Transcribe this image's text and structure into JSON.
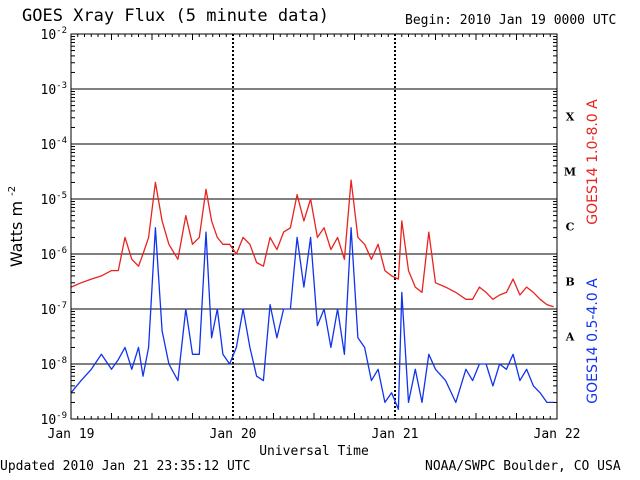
{
  "header": {
    "title": "GOES Xray Flux (5 minute data)",
    "begin": "Begin:  2010 Jan 19 0000 UTC"
  },
  "footer": {
    "updated": "Updated 2010 Jan 21 23:35:12 UTC",
    "credit": "NOAA/SWPC Boulder, CO USA"
  },
  "colors": {
    "long_channel": "#e8231f",
    "short_channel": "#1133ee",
    "grid": "#000000"
  },
  "chart_data": {
    "type": "line",
    "title": "GOES Xray Flux (5 minute data)",
    "xlabel": "Universal Time",
    "ylabel": "Watts m",
    "ylabel_sup": "-2",
    "scale": "log",
    "ylim": [
      1e-09,
      0.01
    ],
    "xlim": [
      "2010-01-19 00:00",
      "2010-01-22 00:00"
    ],
    "x_ticks": [
      "Jan 19",
      "Jan 20",
      "Jan 21",
      "Jan 22"
    ],
    "y_ticks": [
      {
        "base": "10",
        "exp": "-2",
        "value": 0.01
      },
      {
        "base": "10",
        "exp": "-3",
        "value": 0.001
      },
      {
        "base": "10",
        "exp": "-4",
        "value": 0.0001
      },
      {
        "base": "10",
        "exp": "-5",
        "value": 1e-05
      },
      {
        "base": "10",
        "exp": "-6",
        "value": 1e-06
      },
      {
        "base": "10",
        "exp": "-7",
        "value": 1e-07
      },
      {
        "base": "10",
        "exp": "-8",
        "value": 1e-08
      },
      {
        "base": "10",
        "exp": "-9",
        "value": 1e-09
      }
    ],
    "flare_classes": [
      {
        "label": "X",
        "value": 0.000316
      },
      {
        "label": "M",
        "value": 3.16e-05
      },
      {
        "label": "C",
        "value": 3.16e-06
      },
      {
        "label": "B",
        "value": 3.16e-07
      },
      {
        "label": "A",
        "value": 3.16e-08
      }
    ],
    "grid": true,
    "series": [
      {
        "name": "GOES14 1.0-8.0 A",
        "x": [
          "2010-01-19 00:00",
          "2010-01-19 01:30",
          "2010-01-19 03:00",
          "2010-01-19 04:30",
          "2010-01-19 06:00",
          "2010-01-19 07:00",
          "2010-01-19 08:00",
          "2010-01-19 09:00",
          "2010-01-19 10:00",
          "2010-01-19 10:40",
          "2010-01-19 11:30",
          "2010-01-19 12:30",
          "2010-01-19 13:30",
          "2010-01-19 14:30",
          "2010-01-19 15:50",
          "2010-01-19 17:00",
          "2010-01-19 18:00",
          "2010-01-19 19:00",
          "2010-01-19 20:00",
          "2010-01-19 20:50",
          "2010-01-19 21:40",
          "2010-01-19 22:30",
          "2010-01-19 23:30",
          "2010-01-20 00:30",
          "2010-01-20 01:30",
          "2010-01-20 02:30",
          "2010-01-20 03:30",
          "2010-01-20 04:30",
          "2010-01-20 05:30",
          "2010-01-20 06:30",
          "2010-01-20 07:30",
          "2010-01-20 08:30",
          "2010-01-20 09:30",
          "2010-01-20 10:30",
          "2010-01-20 11:30",
          "2010-01-20 12:30",
          "2010-01-20 13:30",
          "2010-01-20 14:30",
          "2010-01-20 15:30",
          "2010-01-20 16:30",
          "2010-01-20 17:30",
          "2010-01-20 18:30",
          "2010-01-20 19:30",
          "2010-01-20 20:30",
          "2010-01-20 21:30",
          "2010-01-20 22:30",
          "2010-01-20 23:30",
          "2010-01-21 00:30",
          "2010-01-21 01:00",
          "2010-01-21 02:00",
          "2010-01-21 03:00",
          "2010-01-21 04:00",
          "2010-01-21 05:00",
          "2010-01-21 06:00",
          "2010-01-21 07:30",
          "2010-01-21 09:00",
          "2010-01-21 10:30",
          "2010-01-21 11:30",
          "2010-01-21 12:30",
          "2010-01-21 13:30",
          "2010-01-21 14:30",
          "2010-01-21 15:30",
          "2010-01-21 16:30",
          "2010-01-21 17:30",
          "2010-01-21 18:30",
          "2010-01-21 19:30",
          "2010-01-21 20:30",
          "2010-01-21 21:30",
          "2010-01-21 22:30",
          "2010-01-21 23:30"
        ],
        "values": [
          2.5e-07,
          3e-07,
          3.5e-07,
          4e-07,
          5e-07,
          5e-07,
          2e-06,
          8e-07,
          6e-07,
          1e-06,
          2e-06,
          2e-05,
          4e-06,
          1.5e-06,
          8e-07,
          5e-06,
          1.5e-06,
          2e-06,
          1.5e-05,
          4e-06,
          2e-06,
          1.5e-06,
          1.5e-06,
          1e-06,
          2e-06,
          1.5e-06,
          7e-07,
          6e-07,
          2e-06,
          1.2e-06,
          2.5e-06,
          3e-06,
          1.2e-05,
          4e-06,
          1e-05,
          2e-06,
          3e-06,
          1.2e-06,
          2e-06,
          8e-07,
          2.2e-05,
          2e-06,
          1.5e-06,
          8e-07,
          1.5e-06,
          5e-07,
          4e-07,
          3.5e-07,
          4e-06,
          5e-07,
          2.5e-07,
          2e-07,
          2.5e-06,
          3e-07,
          2.5e-07,
          2e-07,
          1.5e-07,
          1.5e-07,
          2.5e-07,
          2e-07,
          1.5e-07,
          1.8e-07,
          2e-07,
          3.5e-07,
          1.8e-07,
          2.5e-07,
          2e-07,
          1.5e-07,
          1.2e-07,
          1.1e-07
        ]
      },
      {
        "name": "GOES14 0.5-4.0 A",
        "x": [
          "2010-01-19 00:00",
          "2010-01-19 01:30",
          "2010-01-19 03:00",
          "2010-01-19 04:30",
          "2010-01-19 06:00",
          "2010-01-19 07:00",
          "2010-01-19 08:00",
          "2010-01-19 09:00",
          "2010-01-19 10:00",
          "2010-01-19 10:40",
          "2010-01-19 11:30",
          "2010-01-19 12:30",
          "2010-01-19 13:30",
          "2010-01-19 14:30",
          "2010-01-19 15:50",
          "2010-01-19 17:00",
          "2010-01-19 18:00",
          "2010-01-19 19:00",
          "2010-01-19 20:00",
          "2010-01-19 20:50",
          "2010-01-19 21:40",
          "2010-01-19 22:30",
          "2010-01-19 23:30",
          "2010-01-20 00:30",
          "2010-01-20 01:30",
          "2010-01-20 02:30",
          "2010-01-20 03:30",
          "2010-01-20 04:30",
          "2010-01-20 05:30",
          "2010-01-20 06:30",
          "2010-01-20 07:30",
          "2010-01-20 08:30",
          "2010-01-20 09:30",
          "2010-01-20 10:30",
          "2010-01-20 11:30",
          "2010-01-20 12:30",
          "2010-01-20 13:30",
          "2010-01-20 14:30",
          "2010-01-20 15:30",
          "2010-01-20 16:30",
          "2010-01-20 17:30",
          "2010-01-20 18:30",
          "2010-01-20 19:30",
          "2010-01-20 20:30",
          "2010-01-20 21:30",
          "2010-01-20 22:30",
          "2010-01-20 23:30",
          "2010-01-21 00:30",
          "2010-01-21 01:00",
          "2010-01-21 02:00",
          "2010-01-21 03:00",
          "2010-01-21 04:00",
          "2010-01-21 05:00",
          "2010-01-21 06:00",
          "2010-01-21 07:30",
          "2010-01-21 09:00",
          "2010-01-21 10:30",
          "2010-01-21 11:30",
          "2010-01-21 12:30",
          "2010-01-21 13:30",
          "2010-01-21 14:30",
          "2010-01-21 15:30",
          "2010-01-21 16:30",
          "2010-01-21 17:30",
          "2010-01-21 18:30",
          "2010-01-21 19:30",
          "2010-01-21 20:30",
          "2010-01-21 21:30",
          "2010-01-21 22:30",
          "2010-01-21 23:30"
        ],
        "values": [
          3e-09,
          5e-09,
          8e-09,
          1.5e-08,
          8e-09,
          1.2e-08,
          2e-08,
          8e-09,
          2e-08,
          6e-09,
          2e-08,
          3e-06,
          4e-08,
          1e-08,
          5e-09,
          1e-07,
          1.5e-08,
          1.5e-08,
          2.5e-06,
          3e-08,
          1e-07,
          1.5e-08,
          1e-08,
          2e-08,
          1e-07,
          2e-08,
          6e-09,
          5e-09,
          1.2e-07,
          3e-08,
          1e-07,
          1e-07,
          2e-06,
          2.5e-07,
          2e-06,
          5e-08,
          1e-07,
          2e-08,
          1e-07,
          1.5e-08,
          3e-06,
          3e-08,
          2e-08,
          5e-09,
          8e-09,
          2e-09,
          3e-09,
          1.5e-09,
          2e-07,
          2e-09,
          8e-09,
          2e-09,
          1.5e-08,
          8e-09,
          5e-09,
          2e-09,
          8e-09,
          5e-09,
          1e-08,
          1e-08,
          4e-09,
          1e-08,
          8e-09,
          1.5e-08,
          5e-09,
          8e-09,
          4e-09,
          3e-09,
          2e-09,
          2e-09
        ]
      }
    ]
  }
}
